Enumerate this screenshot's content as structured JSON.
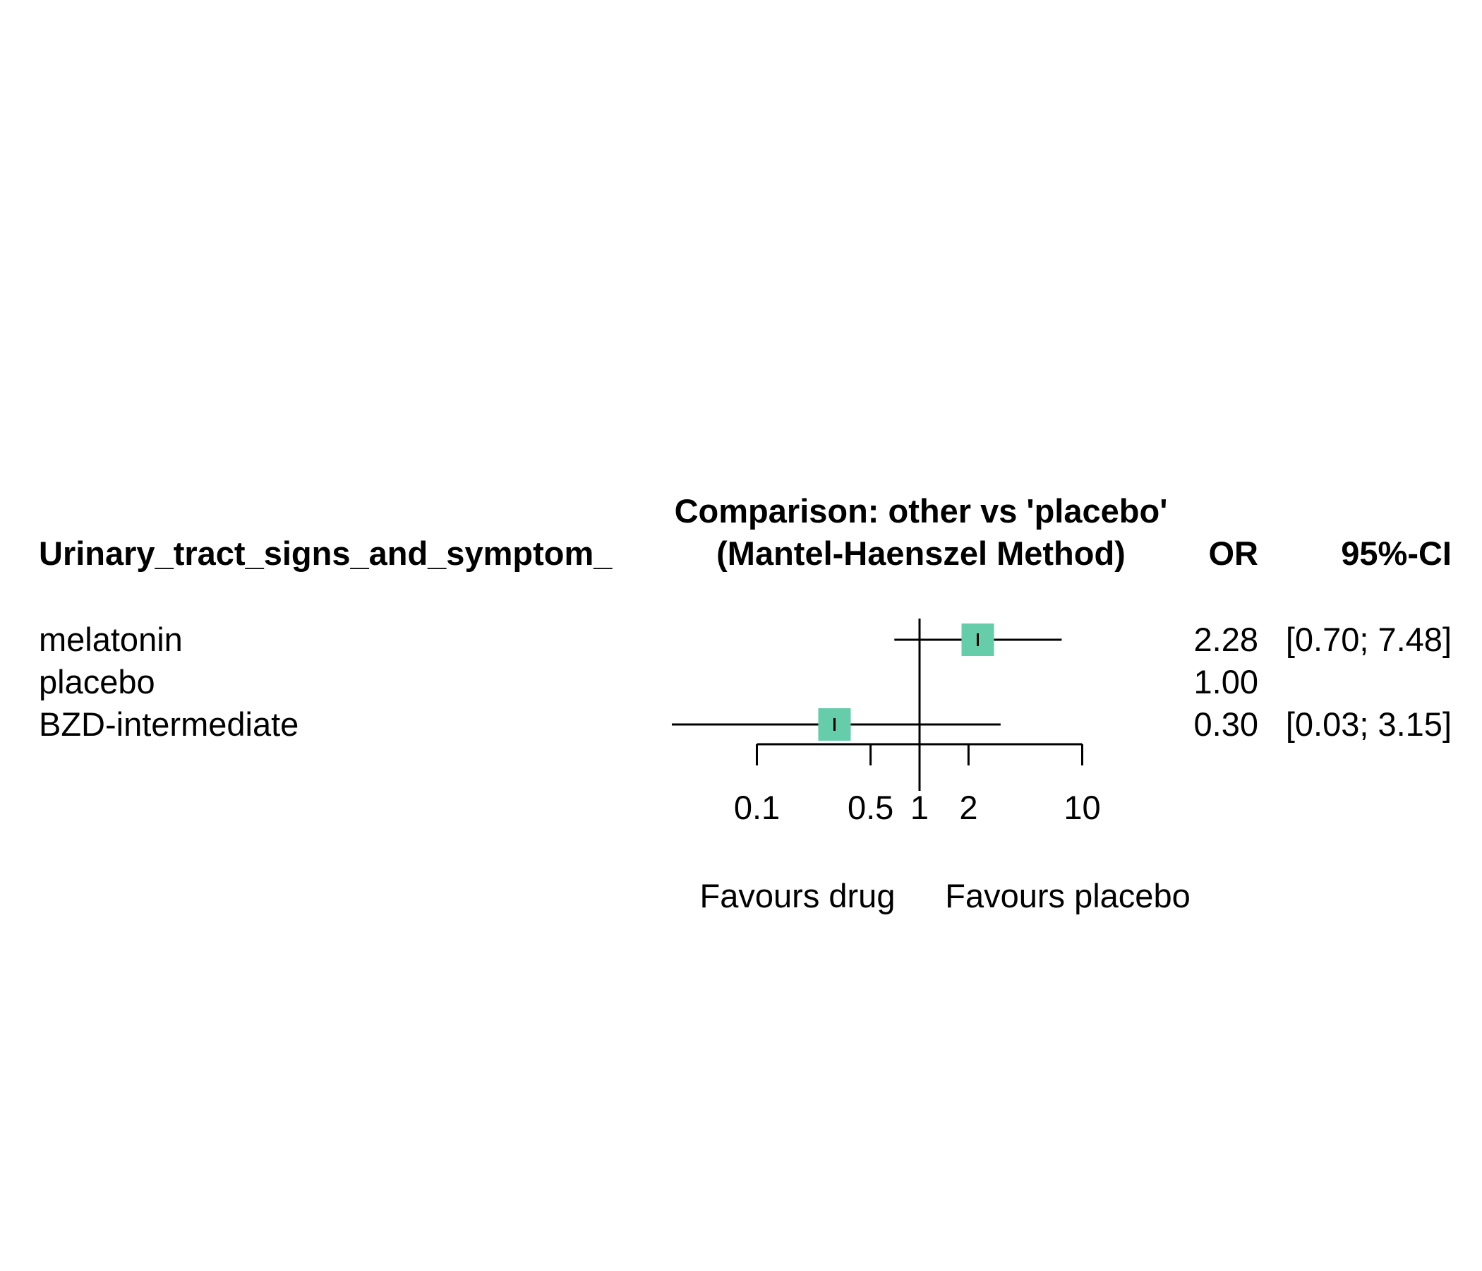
{
  "chart_data": {
    "type": "forest",
    "header": {
      "outcome": "Urinary_tract_signs_and_symptom_",
      "comparison_line1": "Comparison: other vs 'placebo'",
      "comparison_line2": "(Mantel-Haenszel Method)",
      "effect": "OR",
      "ci": "95%-CI"
    },
    "rows": [
      {
        "label": "melatonin",
        "or": 2.28,
        "lower": 0.7,
        "upper": 7.48,
        "or_text": "2.28",
        "ci_text": "[0.70; 7.48]"
      },
      {
        "label": "placebo",
        "or": 1.0,
        "lower": null,
        "upper": null,
        "or_text": "1.00",
        "ci_text": ""
      },
      {
        "label": "BZD-intermediate",
        "or": 0.3,
        "lower": 0.03,
        "upper": 3.15,
        "or_text": "0.30",
        "ci_text": "[0.03; 3.15]"
      }
    ],
    "x_scale": "log",
    "x_ticks": [
      0.1,
      0.5,
      1,
      2,
      10
    ],
    "x_tick_labels": [
      "0.1",
      "0.5",
      "1",
      "2",
      "10"
    ],
    "reference_line": 1,
    "favours_left": "Favours drug",
    "favours_right": "Favours placebo",
    "marker_color": "#66CDAA",
    "line_color": "#000000"
  }
}
